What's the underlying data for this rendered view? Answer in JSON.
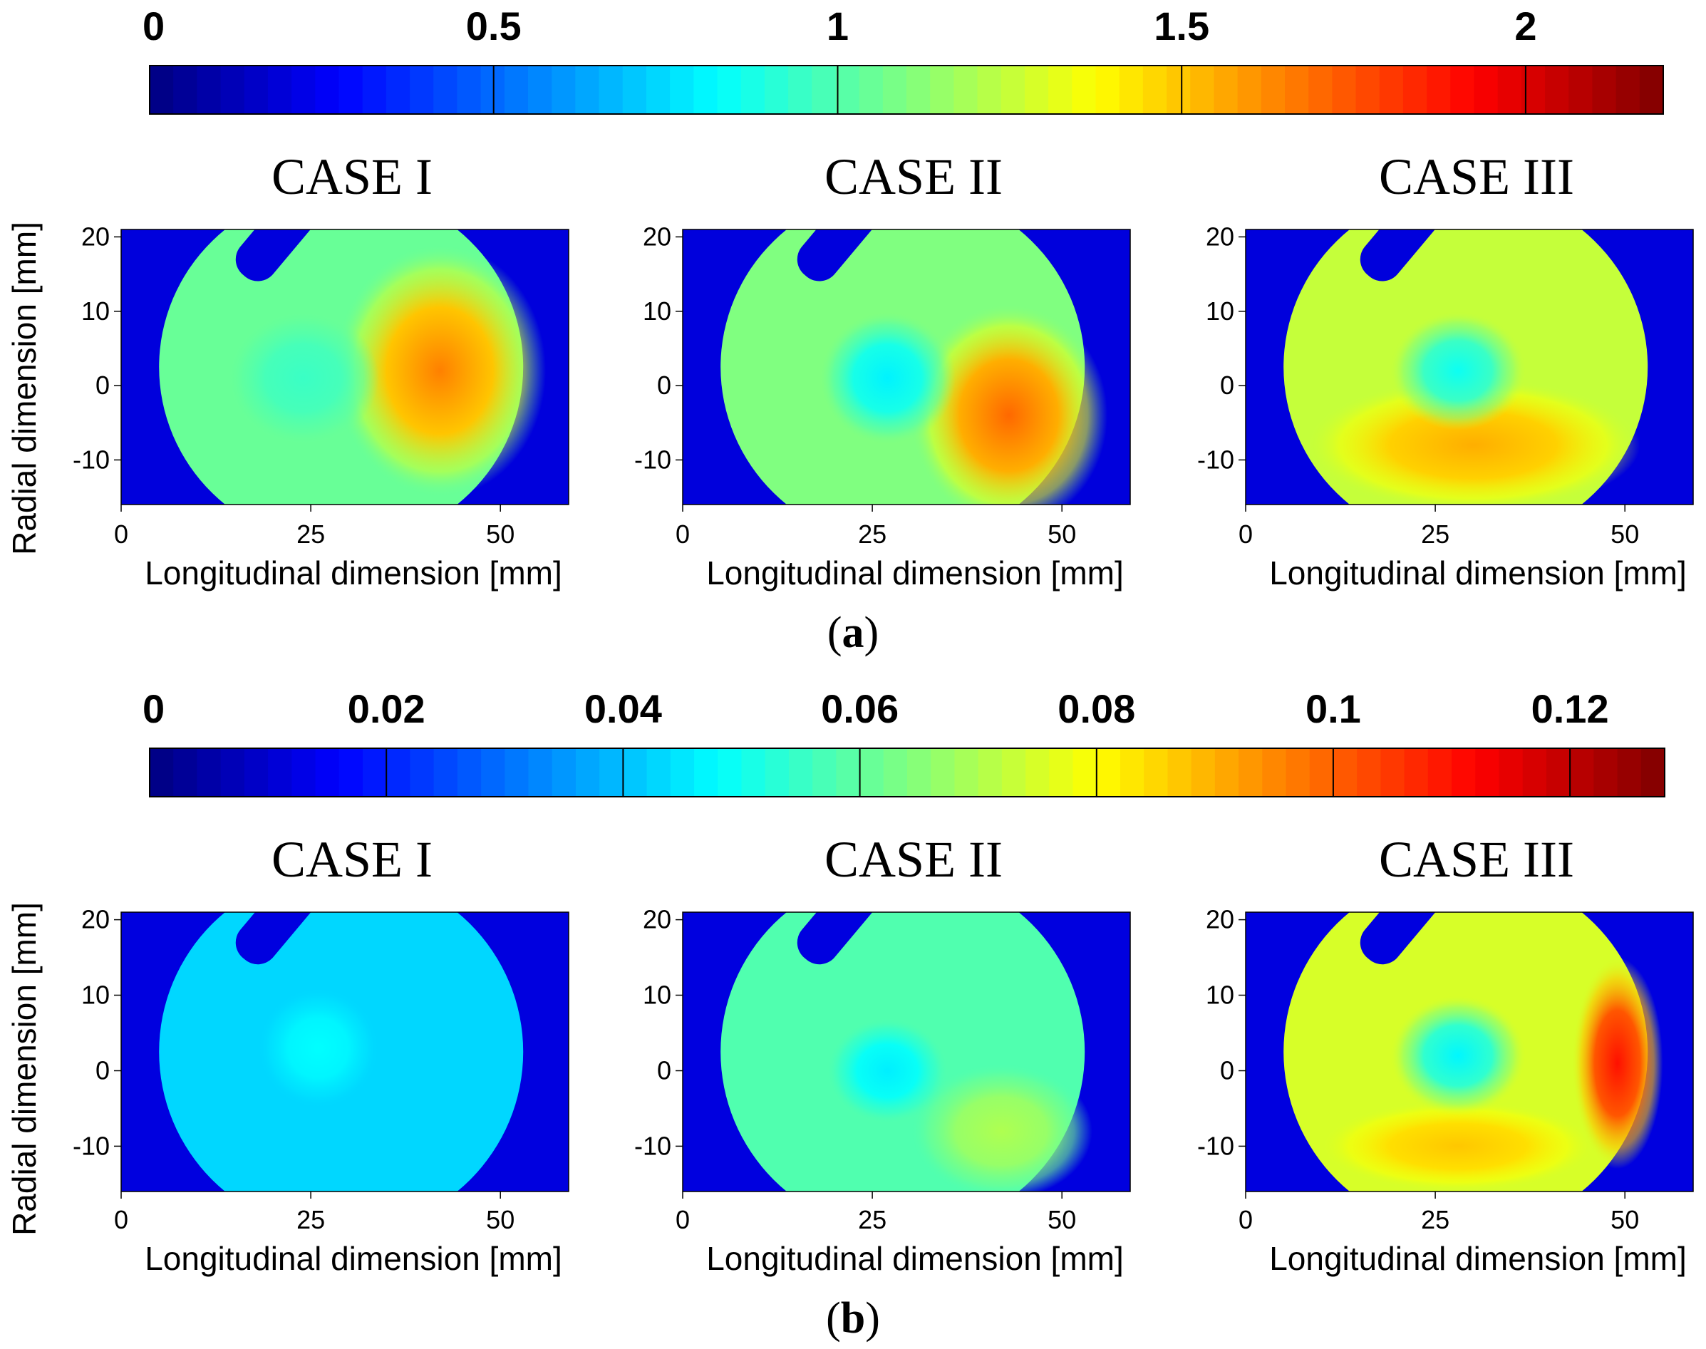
{
  "chart_data": [
    {
      "type": "heatmap",
      "panel_label": "(a)",
      "panel_letter": "a",
      "colorbar": {
        "min": 0,
        "max": 2.2,
        "ticks": [
          0,
          0.5,
          1,
          1.5,
          2
        ],
        "tick_labels": [
          "0",
          "0.5",
          "1",
          "1.5",
          "2"
        ]
      },
      "xlabel": "Longitudinal dimension [mm]",
      "ylabel": "Radial dimension [mm]",
      "xlim": [
        0,
        59
      ],
      "ylim": [
        -16,
        21
      ],
      "xticks": [
        0,
        25,
        50
      ],
      "xtick_labels": [
        "0",
        "25",
        "50"
      ],
      "yticks": [
        -10,
        0,
        10,
        20
      ],
      "ytick_labels": [
        "-10",
        "0",
        "10",
        "20"
      ],
      "cases": [
        {
          "title": "CASE I",
          "background_value": 0.2,
          "base_value": 1.05,
          "features": [
            {
              "kind": "hot",
              "x": 42,
              "y": 2,
              "rx": 14,
              "ry": 17,
              "delta": 0.6
            },
            {
              "kind": "cold",
              "x": 24,
              "y": 1,
              "rx": 10,
              "ry": 9,
              "delta": -0.1
            }
          ]
        },
        {
          "title": "CASE II",
          "background_value": 0.2,
          "base_value": 1.1,
          "features": [
            {
              "kind": "hot",
              "x": 43,
              "y": -4,
              "rx": 13,
              "ry": 15,
              "delta": 0.6
            },
            {
              "kind": "cold",
              "x": 27,
              "y": 1,
              "rx": 9,
              "ry": 9,
              "delta": -0.3
            }
          ]
        },
        {
          "title": "CASE III",
          "background_value": 0.2,
          "base_value": 1.25,
          "features": [
            {
              "kind": "hot",
              "x": 30,
              "y": -8,
              "rx": 22,
              "ry": 9,
              "delta": 0.3
            },
            {
              "kind": "cold",
              "x": 28,
              "y": 2,
              "rx": 9,
              "ry": 8,
              "delta": -0.4
            }
          ]
        }
      ]
    },
    {
      "type": "heatmap",
      "panel_label": "(b)",
      "panel_letter": "b",
      "colorbar": {
        "min": 0,
        "max": 0.128,
        "ticks": [
          0,
          0.02,
          0.04,
          0.06,
          0.08,
          0.1,
          0.12
        ],
        "tick_labels": [
          "0",
          "0.02",
          "0.04",
          "0.06",
          "0.08",
          "0.1",
          "0.12"
        ]
      },
      "xlabel": "Longitudinal dimension [mm]",
      "ylabel": "Radial dimension [mm]",
      "xlim": [
        0,
        59
      ],
      "ylim": [
        -16,
        21
      ],
      "xticks": [
        0,
        25,
        50
      ],
      "xtick_labels": [
        "0",
        "25",
        "50"
      ],
      "yticks": [
        -10,
        0,
        10,
        20
      ],
      "ytick_labels": [
        "-10",
        "0",
        "10",
        "20"
      ],
      "cases": [
        {
          "title": "CASE I",
          "background_value": 0.012,
          "base_value": 0.043,
          "features": [
            {
              "kind": "hot",
              "x": 26,
              "y": 3,
              "rx": 8,
              "ry": 8,
              "delta": 0.005
            }
          ]
        },
        {
          "title": "CASE II",
          "background_value": 0.012,
          "base_value": 0.058,
          "features": [
            {
              "kind": "hot",
              "x": 42,
              "y": -8,
              "rx": 12,
              "ry": 9,
              "delta": 0.012
            },
            {
              "kind": "cold",
              "x": 27,
              "y": 0,
              "rx": 8,
              "ry": 7,
              "delta": -0.012
            }
          ]
        },
        {
          "title": "CASE III",
          "background_value": 0.012,
          "base_value": 0.075,
          "features": [
            {
              "kind": "hot",
              "x": 49,
              "y": 1,
              "rx": 6,
              "ry": 14,
              "delta": 0.035
            },
            {
              "kind": "hot",
              "x": 28,
              "y": -10,
              "rx": 18,
              "ry": 6,
              "delta": 0.012
            },
            {
              "kind": "cold",
              "x": 28,
              "y": 2,
              "rx": 9,
              "ry": 8,
              "delta": -0.028
            }
          ]
        }
      ]
    }
  ]
}
